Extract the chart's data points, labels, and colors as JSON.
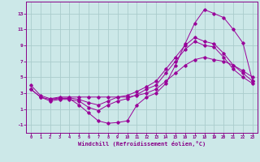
{
  "bg_color": "#cce8e8",
  "grid_color": "#aacccc",
  "line_color": "#990099",
  "xlabel": "Windchill (Refroidissement éolien,°C)",
  "xlim": [
    -0.5,
    23.5
  ],
  "ylim": [
    -2.0,
    14.5
  ],
  "xticks": [
    0,
    1,
    2,
    3,
    4,
    5,
    6,
    7,
    8,
    9,
    10,
    11,
    12,
    13,
    14,
    15,
    16,
    17,
    18,
    19,
    20,
    21,
    22,
    23
  ],
  "yticks": [
    -1,
    1,
    3,
    5,
    7,
    9,
    11,
    13
  ],
  "line1_x": [
    0,
    1,
    2,
    3,
    4,
    5,
    6,
    7,
    8,
    9,
    10,
    11,
    12,
    13,
    14,
    15,
    16,
    17,
    18,
    19,
    20,
    21,
    22,
    23
  ],
  "line1_y": [
    4.0,
    2.7,
    2.3,
    2.5,
    2.5,
    2.5,
    2.5,
    2.5,
    2.5,
    2.5,
    2.5,
    2.7,
    3.0,
    3.5,
    4.5,
    5.5,
    6.5,
    7.2,
    7.5,
    7.2,
    7.0,
    6.5,
    5.8,
    5.0
  ],
  "line2_x": [
    0,
    1,
    2,
    3,
    4,
    5,
    6,
    7,
    8,
    9,
    10,
    11,
    12,
    13,
    14,
    15,
    16,
    17,
    18,
    19,
    20,
    21,
    22,
    23
  ],
  "line2_y": [
    3.5,
    2.5,
    2.2,
    2.3,
    2.4,
    2.2,
    1.8,
    1.5,
    2.0,
    2.5,
    2.7,
    3.2,
    3.8,
    4.5,
    6.0,
    7.5,
    9.0,
    10.0,
    9.5,
    9.2,
    8.0,
    6.5,
    5.5,
    4.5
  ],
  "line3_x": [
    2,
    3,
    4,
    5,
    6,
    7,
    8,
    9,
    10,
    11,
    12,
    13,
    14,
    15,
    16,
    17,
    18,
    19,
    20,
    21,
    22,
    23
  ],
  "line3_y": [
    2.2,
    2.4,
    2.3,
    1.5,
    0.5,
    -0.5,
    -0.8,
    -0.7,
    -0.5,
    1.5,
    2.5,
    3.0,
    4.2,
    6.5,
    9.2,
    11.8,
    13.5,
    13.0,
    12.5,
    11.0,
    9.3,
    4.5
  ],
  "line4_x": [
    0,
    1,
    2,
    3,
    4,
    5,
    6,
    7,
    8,
    9,
    10,
    11,
    12,
    13,
    14,
    15,
    16,
    17,
    18,
    19,
    20,
    21,
    22,
    23
  ],
  "line4_y": [
    3.5,
    2.5,
    2.0,
    2.2,
    2.2,
    2.0,
    1.2,
    0.8,
    1.5,
    2.0,
    2.3,
    2.8,
    3.5,
    4.0,
    5.5,
    7.0,
    8.5,
    9.5,
    9.0,
    8.8,
    7.5,
    6.0,
    5.0,
    4.2
  ]
}
